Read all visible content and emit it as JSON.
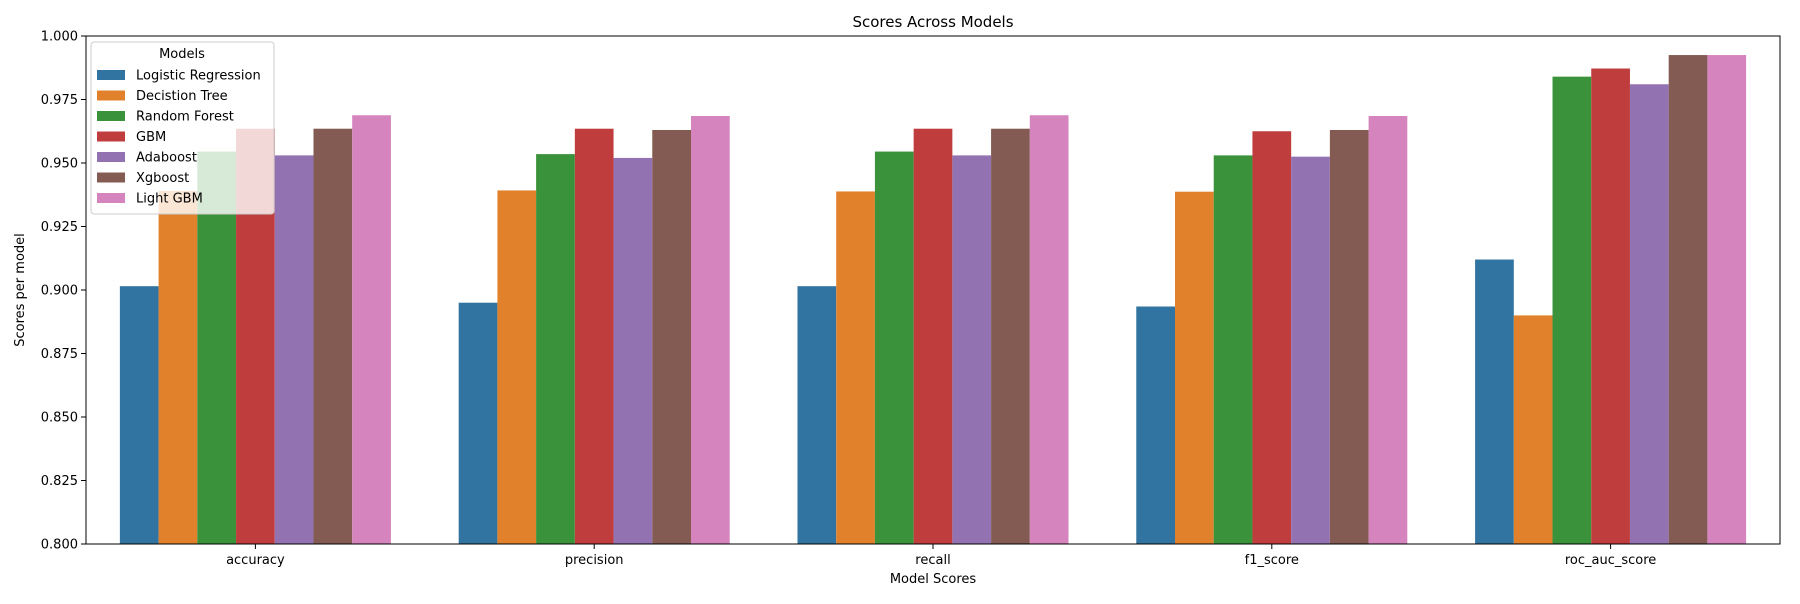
{
  "chart_data": {
    "type": "bar",
    "title": "Scores Across Models",
    "xlabel": "Model Scores",
    "ylabel": "Scores per model",
    "ylim": [
      0.8,
      1.0
    ],
    "yticks": [
      "0.800",
      "0.825",
      "0.850",
      "0.875",
      "0.900",
      "0.925",
      "0.950",
      "0.975",
      "1.000"
    ],
    "categories": [
      "accuracy",
      "precision",
      "recall",
      "f1_score",
      "roc_auc_score"
    ],
    "legend": {
      "title": "Models",
      "placement": "upper-left"
    },
    "grid": false,
    "series": [
      {
        "name": "Logistic Regression",
        "color": "#3274a1",
        "values": [
          0.9015,
          0.895,
          0.9015,
          0.8935,
          0.912
        ]
      },
      {
        "name": "Decistion Tree",
        "color": "#e1812c",
        "values": [
          0.939,
          0.9392,
          0.9388,
          0.9387,
          0.89
        ]
      },
      {
        "name": "Random Forest",
        "color": "#3a923a",
        "values": [
          0.9545,
          0.9535,
          0.9545,
          0.953,
          0.984
        ]
      },
      {
        "name": "GBM",
        "color": "#c03d3e",
        "values": [
          0.9635,
          0.9635,
          0.9635,
          0.9625,
          0.9872
        ]
      },
      {
        "name": "Adaboost",
        "color": "#9372b2",
        "values": [
          0.953,
          0.952,
          0.953,
          0.9525,
          0.981
        ]
      },
      {
        "name": "Xgboost",
        "color": "#845b53",
        "values": [
          0.9635,
          0.963,
          0.9635,
          0.963,
          0.9925
        ]
      },
      {
        "name": "Light GBM",
        "color": "#d684bd",
        "values": [
          0.9688,
          0.9685,
          0.9688,
          0.9685,
          0.9925
        ]
      }
    ]
  }
}
